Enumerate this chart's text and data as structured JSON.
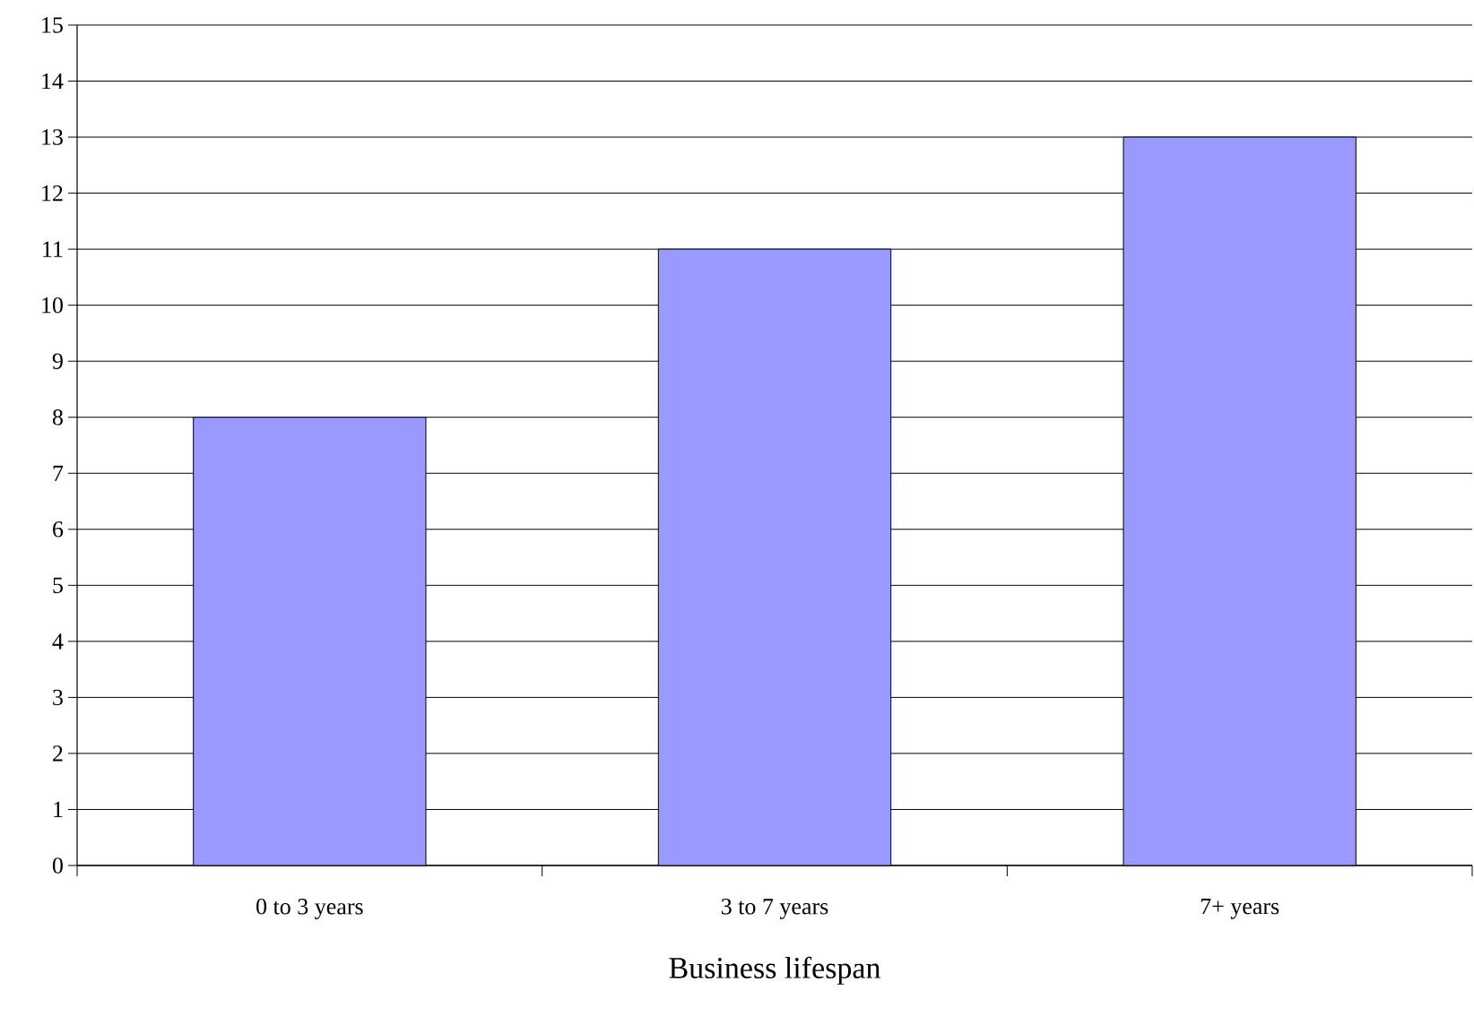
{
  "chart_data": {
    "type": "bar",
    "xlabel": "Business lifespan",
    "categories": [
      "0 to 3 years",
      "3 to 7 years",
      "7+ years"
    ],
    "values": [
      8,
      11,
      13
    ],
    "color": "#9999ff",
    "ylim": [
      0,
      15
    ],
    "yticks": [
      0,
      1,
      2,
      3,
      4,
      5,
      6,
      7,
      8,
      9,
      10,
      11,
      12,
      13,
      14,
      15
    ],
    "grid": "y"
  }
}
